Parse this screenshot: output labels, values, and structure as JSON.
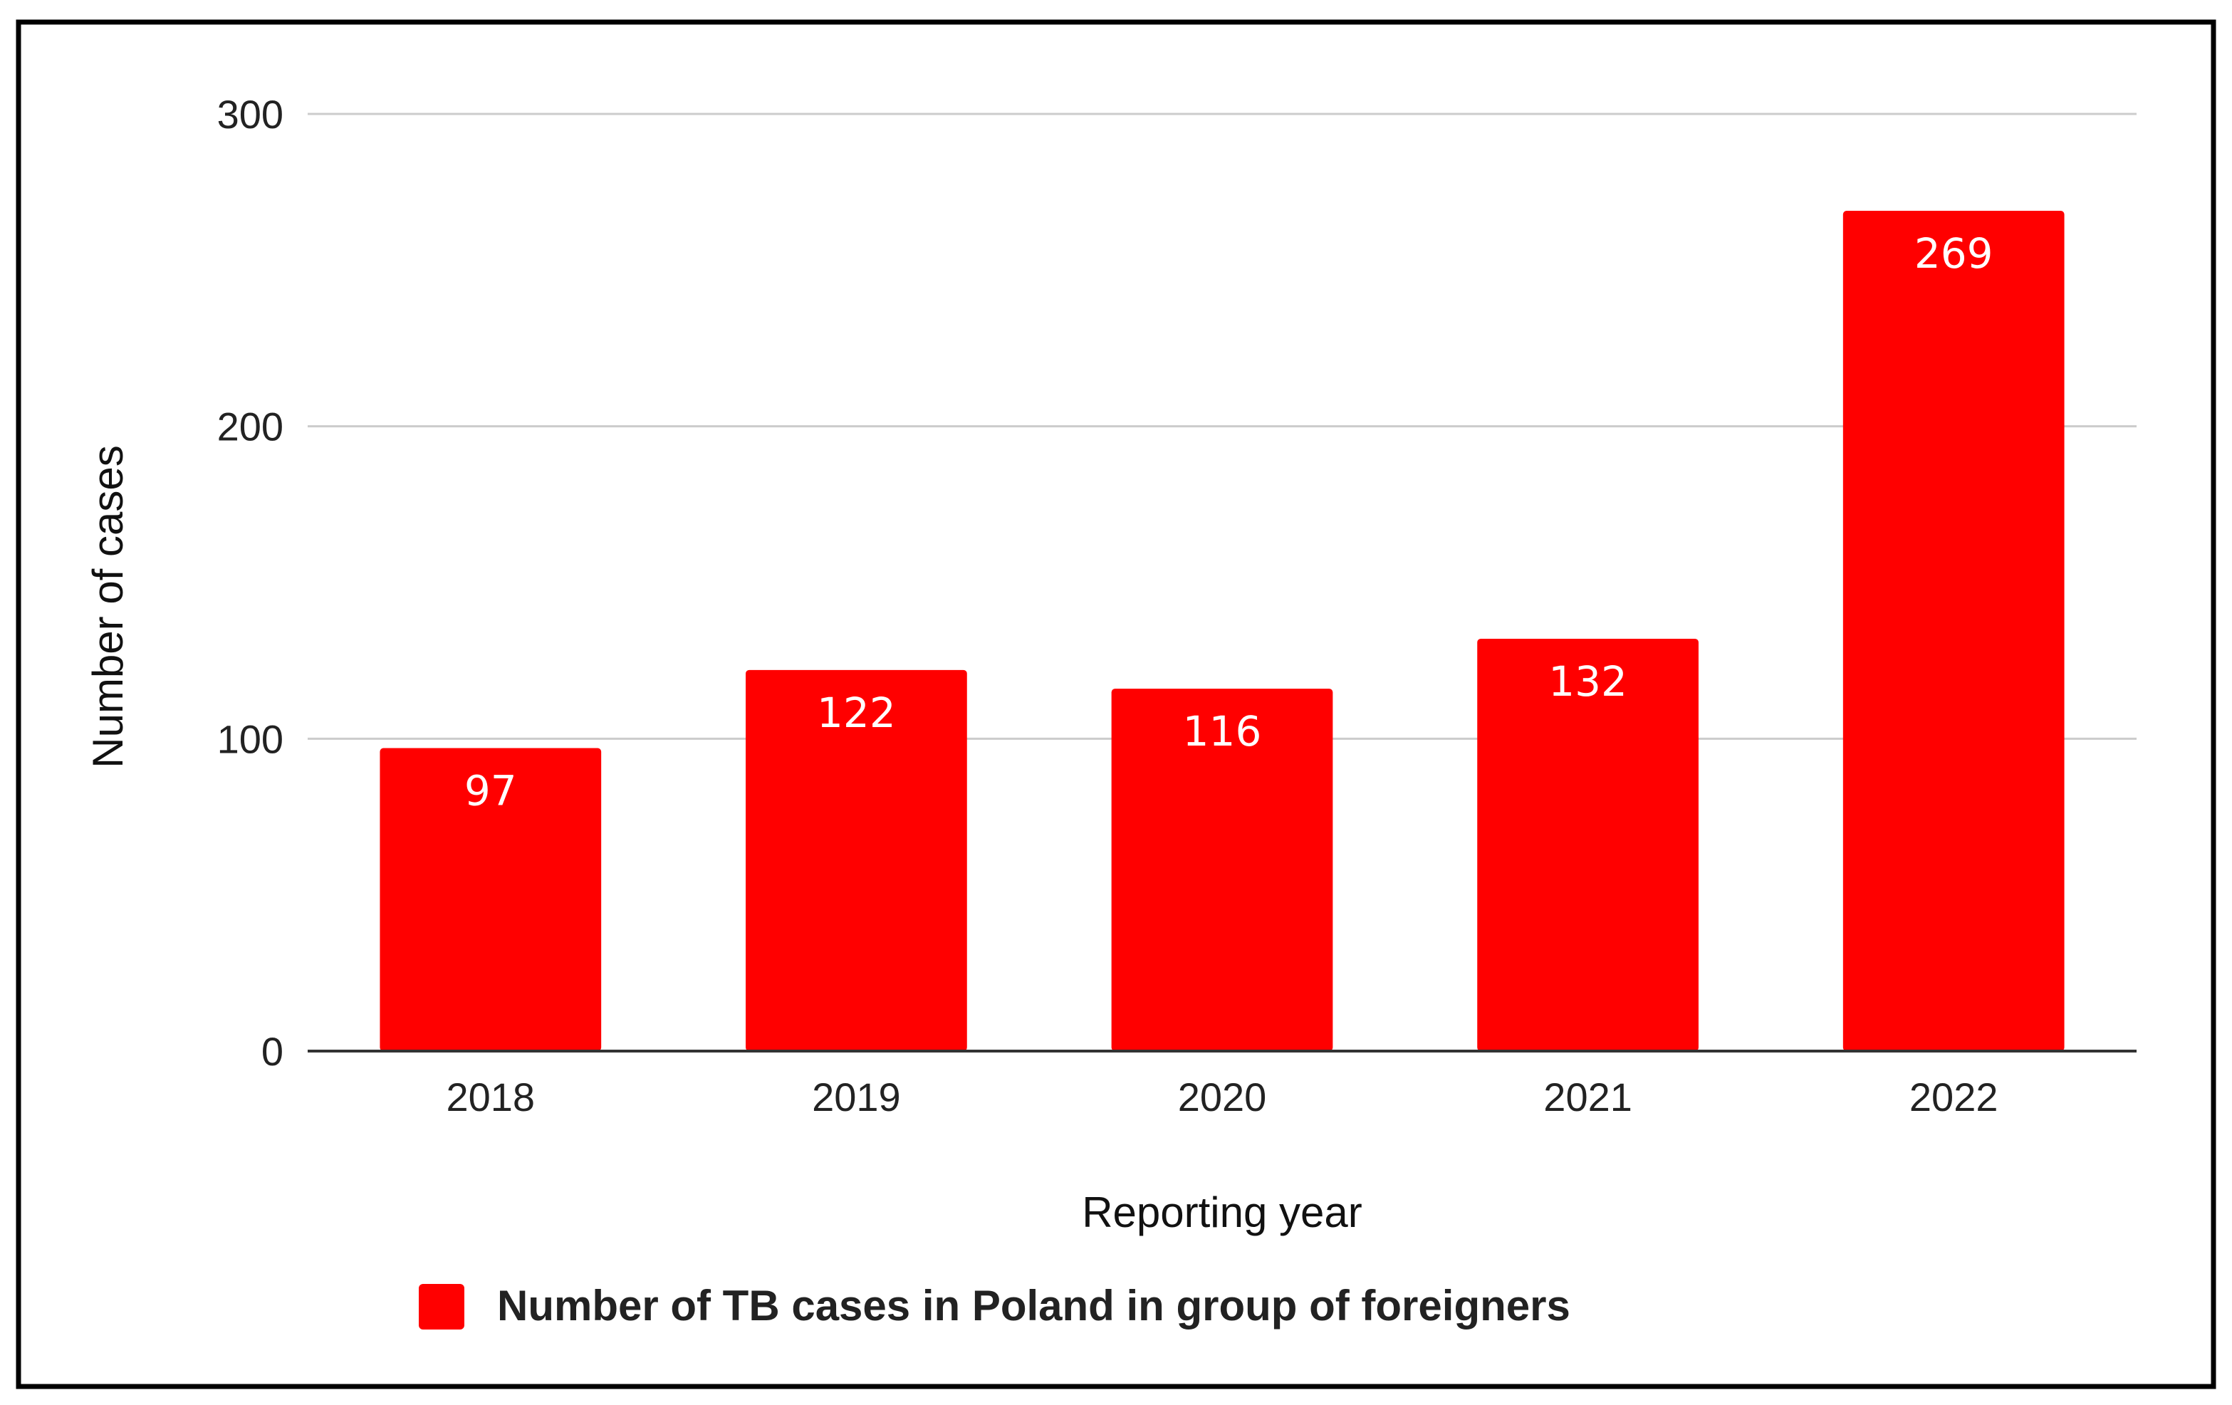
{
  "chart_data": {
    "type": "bar",
    "categories": [
      "2018",
      "2019",
      "2020",
      "2021",
      "2022"
    ],
    "series": [
      {
        "name": "Number of TB cases in Poland in group of foreigners",
        "values": [
          97,
          122,
          116,
          132,
          269
        ]
      }
    ],
    "data_labels": [
      "97",
      "122",
      "116",
      "132",
      "269"
    ],
    "title": "",
    "xlabel": "Reporting year",
    "ylabel": "Number of cases",
    "ylim": [
      0,
      300
    ],
    "yticks": [
      0,
      100,
      200,
      300
    ],
    "ytick_labels": [
      "0",
      "100",
      "200",
      "300"
    ],
    "grid": true,
    "legend_position": "bottom",
    "colors": {
      "bar": "#ff0000",
      "grid": "#cccccc",
      "axis": "#333333",
      "frame": "#000000"
    }
  }
}
